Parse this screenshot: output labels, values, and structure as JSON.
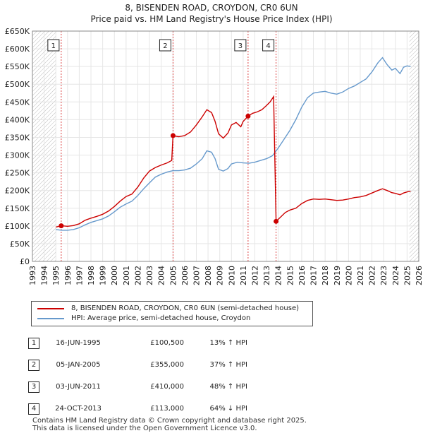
{
  "chart_data": {
    "type": "line",
    "title": "8, BISENDEN ROAD, CROYDON, CR0 6UN",
    "subtitle": "Price paid vs. HM Land Registry's House Price Index (HPI)",
    "xlim": [
      1993,
      2026
    ],
    "ylim": [
      0,
      650000
    ],
    "x_ticks": [
      "1993",
      "1994",
      "1995",
      "1996",
      "1997",
      "1998",
      "1999",
      "2000",
      "2001",
      "2002",
      "2003",
      "2004",
      "2005",
      "2006",
      "2007",
      "2008",
      "2009",
      "2010",
      "2011",
      "2012",
      "2013",
      "2014",
      "2015",
      "2016",
      "2017",
      "2018",
      "2019",
      "2020",
      "2021",
      "2022",
      "2023",
      "2024",
      "2025",
      "2026"
    ],
    "y_ticks": [
      {
        "v": 0,
        "label": "£0"
      },
      {
        "v": 50000,
        "label": "£50K"
      },
      {
        "v": 100000,
        "label": "£100K"
      },
      {
        "v": 150000,
        "label": "£150K"
      },
      {
        "v": 200000,
        "label": "£200K"
      },
      {
        "v": 250000,
        "label": "£250K"
      },
      {
        "v": 300000,
        "label": "£300K"
      },
      {
        "v": 350000,
        "label": "£350K"
      },
      {
        "v": 400000,
        "label": "£400K"
      },
      {
        "v": 450000,
        "label": "£450K"
      },
      {
        "v": 500000,
        "label": "£500K"
      },
      {
        "v": 550000,
        "label": "£550K"
      },
      {
        "v": 600000,
        "label": "£600K"
      },
      {
        "v": 650000,
        "label": "£650K"
      }
    ],
    "hatch_before": 1995.0,
    "hatch_after": 2025.2,
    "series": [
      {
        "name": "8, BISENDEN ROAD, CROYDON, CR0 6UN (semi-detached house)",
        "color": "#cc0000",
        "points": [
          [
            1995.0,
            97000
          ],
          [
            1995.46,
            100500
          ],
          [
            1996.0,
            99000
          ],
          [
            1996.5,
            101000
          ],
          [
            1997.0,
            106000
          ],
          [
            1997.5,
            116000
          ],
          [
            1998.0,
            122000
          ],
          [
            1998.5,
            127000
          ],
          [
            1999.0,
            133000
          ],
          [
            1999.5,
            142000
          ],
          [
            2000.0,
            155000
          ],
          [
            2000.5,
            170000
          ],
          [
            2001.0,
            183000
          ],
          [
            2001.5,
            190000
          ],
          [
            2002.0,
            210000
          ],
          [
            2002.5,
            235000
          ],
          [
            2003.0,
            255000
          ],
          [
            2003.5,
            265000
          ],
          [
            2004.0,
            272000
          ],
          [
            2004.5,
            278000
          ],
          [
            2004.9,
            285000
          ],
          [
            2005.01,
            355000
          ],
          [
            2005.5,
            352000
          ],
          [
            2006.0,
            355000
          ],
          [
            2006.5,
            365000
          ],
          [
            2007.0,
            385000
          ],
          [
            2007.5,
            408000
          ],
          [
            2007.9,
            428000
          ],
          [
            2008.3,
            420000
          ],
          [
            2008.6,
            395000
          ],
          [
            2008.9,
            360000
          ],
          [
            2009.3,
            348000
          ],
          [
            2009.7,
            362000
          ],
          [
            2010.0,
            385000
          ],
          [
            2010.4,
            392000
          ],
          [
            2010.8,
            380000
          ],
          [
            2011.0,
            395000
          ],
          [
            2011.42,
            410000
          ],
          [
            2011.8,
            418000
          ],
          [
            2012.2,
            422000
          ],
          [
            2012.6,
            428000
          ],
          [
            2013.0,
            440000
          ],
          [
            2013.3,
            450000
          ],
          [
            2013.6,
            465000
          ],
          [
            2013.81,
            113000
          ],
          [
            2014.2,
            125000
          ],
          [
            2014.6,
            138000
          ],
          [
            2015.0,
            145000
          ],
          [
            2015.5,
            150000
          ],
          [
            2016.0,
            163000
          ],
          [
            2016.5,
            172000
          ],
          [
            2017.0,
            176000
          ],
          [
            2017.5,
            175000
          ],
          [
            2018.0,
            176000
          ],
          [
            2018.5,
            174000
          ],
          [
            2019.0,
            172000
          ],
          [
            2019.5,
            173000
          ],
          [
            2020.0,
            176000
          ],
          [
            2020.5,
            180000
          ],
          [
            2021.0,
            182000
          ],
          [
            2021.5,
            186000
          ],
          [
            2022.0,
            193000
          ],
          [
            2022.5,
            200000
          ],
          [
            2022.9,
            205000
          ],
          [
            2023.3,
            200000
          ],
          [
            2023.7,
            194000
          ],
          [
            2024.0,
            192000
          ],
          [
            2024.4,
            188000
          ],
          [
            2024.7,
            193000
          ],
          [
            2025.1,
            197000
          ],
          [
            2025.3,
            198000
          ]
        ]
      },
      {
        "name": "HPI: Average price, semi-detached house, Croydon",
        "color": "#6699cc",
        "points": [
          [
            1995.0,
            90000
          ],
          [
            1995.5,
            88000
          ],
          [
            1996.0,
            88000
          ],
          [
            1996.5,
            90000
          ],
          [
            1997.0,
            95000
          ],
          [
            1997.5,
            103000
          ],
          [
            1998.0,
            110000
          ],
          [
            1998.5,
            115000
          ],
          [
            1999.0,
            120000
          ],
          [
            1999.5,
            128000
          ],
          [
            2000.0,
            140000
          ],
          [
            2000.5,
            153000
          ],
          [
            2001.0,
            162000
          ],
          [
            2001.5,
            170000
          ],
          [
            2002.0,
            186000
          ],
          [
            2002.5,
            205000
          ],
          [
            2003.0,
            222000
          ],
          [
            2003.5,
            238000
          ],
          [
            2004.0,
            246000
          ],
          [
            2004.5,
            252000
          ],
          [
            2005.0,
            256000
          ],
          [
            2005.5,
            256000
          ],
          [
            2006.0,
            258000
          ],
          [
            2006.5,
            263000
          ],
          [
            2007.0,
            275000
          ],
          [
            2007.5,
            290000
          ],
          [
            2007.9,
            312000
          ],
          [
            2008.3,
            308000
          ],
          [
            2008.6,
            290000
          ],
          [
            2008.9,
            260000
          ],
          [
            2009.3,
            255000
          ],
          [
            2009.7,
            262000
          ],
          [
            2010.0,
            275000
          ],
          [
            2010.5,
            280000
          ],
          [
            2011.0,
            278000
          ],
          [
            2011.5,
            277000
          ],
          [
            2012.0,
            280000
          ],
          [
            2012.5,
            285000
          ],
          [
            2013.0,
            290000
          ],
          [
            2013.5,
            298000
          ],
          [
            2014.0,
            320000
          ],
          [
            2014.5,
            345000
          ],
          [
            2015.0,
            370000
          ],
          [
            2015.5,
            400000
          ],
          [
            2016.0,
            435000
          ],
          [
            2016.5,
            462000
          ],
          [
            2017.0,
            475000
          ],
          [
            2017.5,
            478000
          ],
          [
            2018.0,
            480000
          ],
          [
            2018.5,
            475000
          ],
          [
            2019.0,
            472000
          ],
          [
            2019.5,
            478000
          ],
          [
            2020.0,
            488000
          ],
          [
            2020.5,
            495000
          ],
          [
            2021.0,
            505000
          ],
          [
            2021.5,
            515000
          ],
          [
            2022.0,
            535000
          ],
          [
            2022.5,
            560000
          ],
          [
            2022.9,
            575000
          ],
          [
            2023.3,
            555000
          ],
          [
            2023.7,
            540000
          ],
          [
            2024.0,
            545000
          ],
          [
            2024.4,
            530000
          ],
          [
            2024.7,
            548000
          ],
          [
            2025.0,
            552000
          ],
          [
            2025.3,
            550000
          ]
        ]
      }
    ],
    "sales": [
      {
        "num": "1",
        "x": 1995.46,
        "price": 100500,
        "date": "16-JUN-1995",
        "price_label": "£100,500",
        "hpi": "13% ↑ HPI"
      },
      {
        "num": "2",
        "x": 2005.01,
        "price": 355000,
        "date": "05-JAN-2005",
        "price_label": "£355,000",
        "hpi": "37% ↑ HPI"
      },
      {
        "num": "3",
        "x": 2011.42,
        "price": 410000,
        "date": "03-JUN-2011",
        "price_label": "£410,000",
        "hpi": "48% ↑ HPI"
      },
      {
        "num": "4",
        "x": 2013.81,
        "price": 113000,
        "date": "24-OCT-2013",
        "price_label": "£113,000",
        "hpi": "64% ↓ HPI"
      }
    ]
  },
  "legend": {
    "red_label": "8, BISENDEN ROAD, CROYDON, CR0 6UN (semi-detached house)",
    "blue_label": "HPI: Average price, semi-detached house, Croydon",
    "red_color": "#cc0000",
    "blue_color": "#6699cc"
  },
  "footer": {
    "line1": "Contains HM Land Registry data © Crown copyright and database right 2025.",
    "line2": "This data is licensed under the Open Government Licence v3.0."
  }
}
